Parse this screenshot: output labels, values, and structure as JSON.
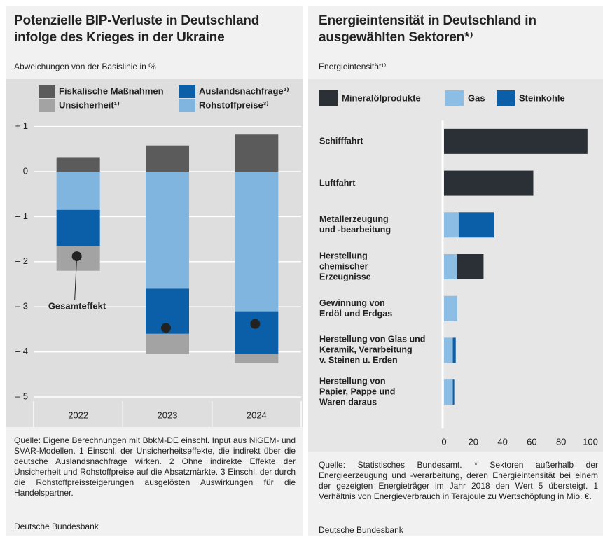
{
  "chart_data": [
    {
      "type": "bar",
      "stacked": true,
      "title": "Potenzielle BIP-Verluste in Deutschland\ninfolge des Krieges in der Ukraine",
      "subtitle": "Abweichungen von der Basislinie in %",
      "categories": [
        "2022",
        "2023",
        "2024"
      ],
      "series": [
        {
          "name": "Fiskalische Maßnahmen",
          "color": "#5b5b5b",
          "values": [
            0.32,
            0.58,
            0.82
          ]
        },
        {
          "name": "Rohstoffpreise³⁾",
          "color": "#80b5df",
          "values": [
            -0.85,
            -2.6,
            -3.1
          ]
        },
        {
          "name": "Auslandsnachfrage²⁾",
          "color": "#0b5fa8",
          "values": [
            -0.8,
            -1.0,
            -0.95
          ]
        },
        {
          "name": "Unsicherheit¹⁾",
          "color": "#a3a3a3",
          "values": [
            -0.55,
            -0.45,
            -0.2
          ]
        }
      ],
      "totals": {
        "name": "Gesamteffekt",
        "color": "#222222",
        "values": [
          -1.88,
          -3.47,
          -3.38
        ]
      },
      "ylim": [
        -5.35,
        1.15
      ],
      "yticks": [
        {
          "value": 1,
          "label": "+ 1"
        },
        0,
        {
          "value": -1,
          "label": "– 1"
        },
        {
          "value": -2,
          "label": "– 2"
        },
        {
          "value": -3,
          "label": "– 3"
        },
        {
          "value": -4,
          "label": "– 4"
        },
        {
          "value": -5,
          "label": "– 5"
        }
      ],
      "grid": true,
      "note": "Quelle: Eigene Berechnungen mit BbkM-DE einschl. Input aus NiGEM- und SVAR-Modellen. 1 Einschl. der Unsicherheitseffekte, die indirekt über die deutsche Auslandsnachfrage wirken. 2 Ohne indirekte Effekte der Unsicherheit und Rohstoffpreise auf die Absatzmärkte. 3 Einschl. der durch die Rohstoffpreissteigerungen ausgelösten Auswirkungen für die Handelspartner.",
      "source": "Deutsche Bundesbank"
    },
    {
      "type": "hbar",
      "stacked": true,
      "title": "Energieintensität in Deutschland in\nausgewählten Sektoren*⁾",
      "subtitle": "Energieintensität¹⁾",
      "categories": [
        "Schifffahrt",
        "Luftfahrt",
        "Metallerzeugung\nund -bearbeitung",
        "Herstellung\nchemischer\nErzeugnisse",
        "Gewinnung von\nErdöl und Erdgas",
        "Herstellung von Glas und\nKeramik, Verarbeitung\nv. Steinen u. Erden",
        "Herstellung von\nPapier, Pappe und\nWaren daraus"
      ],
      "series": [
        {
          "name": "Gas",
          "color": "#8cbde4",
          "values": [
            0,
            0,
            10,
            9,
            9,
            6,
            6
          ]
        },
        {
          "name": "Mineralölprodukte",
          "color": "#2b2f36",
          "values": [
            98,
            61,
            0,
            18,
            0,
            0,
            0
          ]
        },
        {
          "name": "Steinkohle",
          "color": "#0b5fa8",
          "values": [
            0,
            0,
            24,
            0,
            0,
            2,
            1
          ]
        }
      ],
      "xlim": [
        0,
        100
      ],
      "xticks": [
        0,
        20,
        40,
        60,
        80,
        100
      ],
      "grid": false,
      "note": "Quelle: Statistisches Bundesamt. * Sektoren außerhalb der Energieerzeugung und -verarbeitung, deren Energieintensität bei einem der gezeigten Energieträger im Jahr 2018 den Wert 5 übersteigt. 1 Verhältnis von Energieverbrauch in Terajoule zu Wertschöpfung in Mio. €.",
      "source": "Deutsche Bundesbank"
    }
  ]
}
